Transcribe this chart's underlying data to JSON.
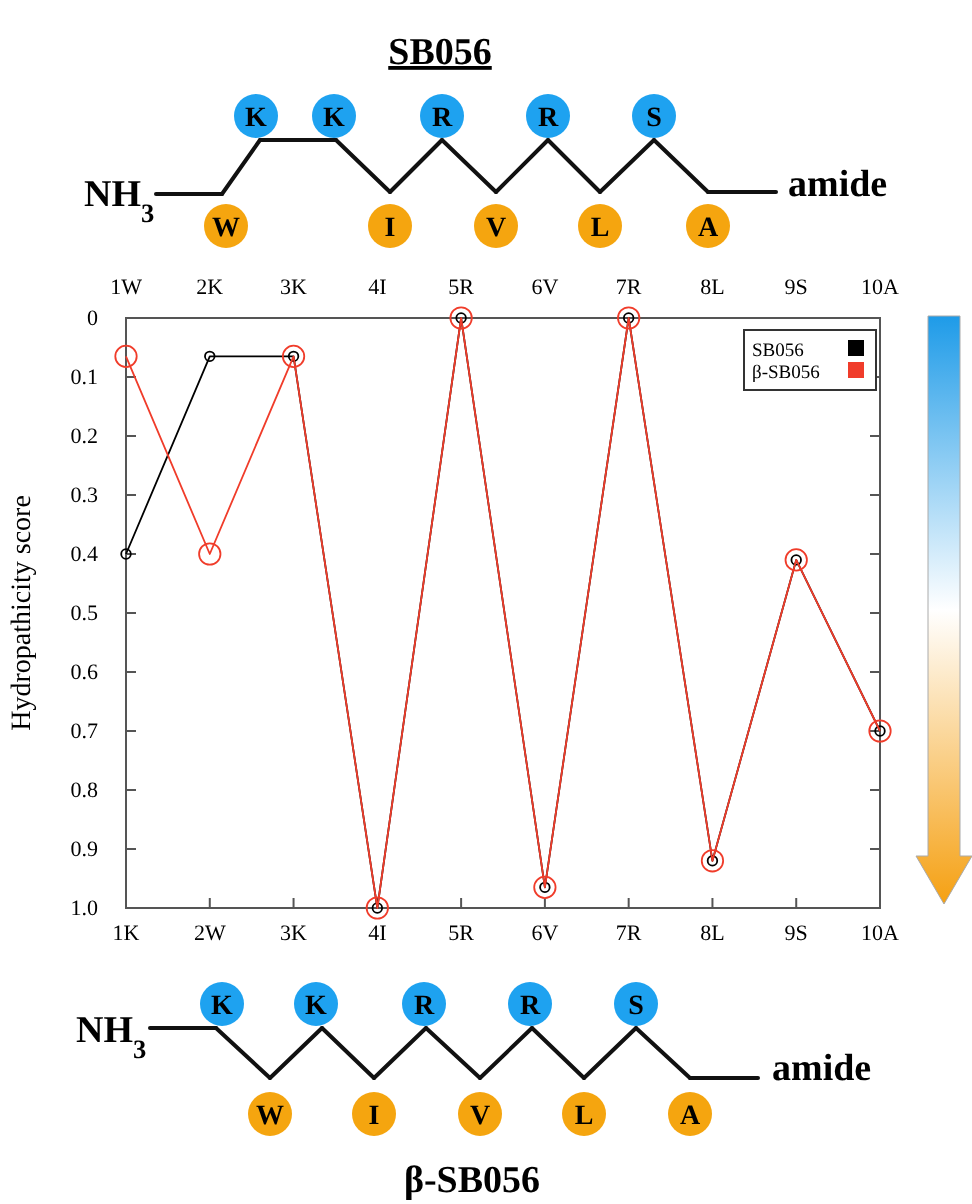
{
  "chart_data": {
    "type": "line",
    "ylabel": "Hydropathicity score",
    "categories": [
      "1K",
      "2W",
      "3K",
      "4I",
      "5R",
      "6V",
      "7R",
      "8L",
      "9S",
      "10A"
    ],
    "x2lim": [
      1,
      10
    ],
    "x2ticks": [
      {
        "value": 1,
        "label": "1W"
      },
      {
        "value": 2,
        "label": "2K"
      },
      {
        "value": 3,
        "label": "3K"
      },
      {
        "value": 4,
        "label": "4I"
      },
      {
        "value": 5,
        "label": "5R"
      },
      {
        "value": 6,
        "label": "6V"
      },
      {
        "value": 7,
        "label": "7R"
      },
      {
        "value": 8,
        "label": "8L"
      },
      {
        "value": 9,
        "label": "9S"
      },
      {
        "value": 10,
        "label": "10A"
      }
    ],
    "ylim": [
      1,
      0
    ],
    "yticks": [
      0,
      0.1,
      0.2,
      0.3,
      0.4,
      0.5,
      0.6,
      0.7,
      0.8,
      0.9,
      {
        "value": 1,
        "label": "1.0"
      }
    ],
    "series": [
      {
        "name": "SB056",
        "color": "#000000",
        "values": [
          0.4,
          0.065,
          0.065,
          1.0,
          0,
          0.965,
          0,
          0.92,
          0.41,
          0.7
        ]
      },
      {
        "name": "β-SB056",
        "color": "#f03c2a",
        "values": [
          0.065,
          0.4,
          0.065,
          1.0,
          0,
          0.965,
          0,
          0.92,
          0.41,
          0.7
        ]
      }
    ],
    "marker": "circle",
    "grid": false,
    "legend": "top right",
    "annotations": [
      "SB056",
      "NH$_{3}$",
      "K",
      "K",
      "R",
      "R",
      "S",
      "W",
      "I",
      "V",
      "L",
      "A",
      "amide",
      "β-SB056",
      "NH$_{3}$",
      "K",
      "K",
      "R",
      "R",
      "S",
      "W",
      "I",
      "V",
      "L",
      "A",
      "amide"
    ]
  }
}
